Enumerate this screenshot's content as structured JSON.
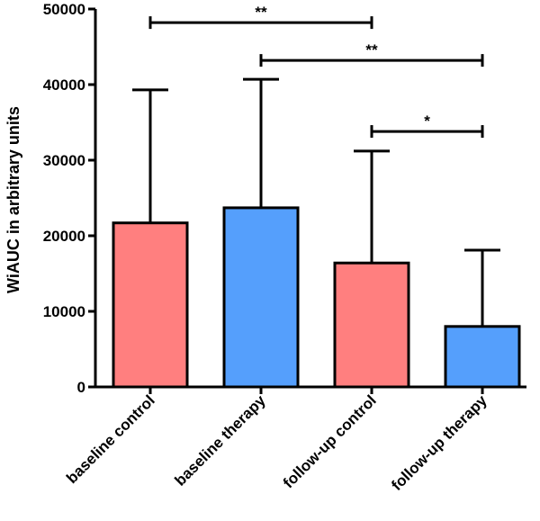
{
  "chart_data": {
    "type": "bar",
    "title": "",
    "xlabel": "",
    "ylabel": "WiAUC in arbitrary units",
    "ylim": [
      0,
      50000
    ],
    "yticks": [
      0,
      10000,
      20000,
      30000,
      40000,
      50000
    ],
    "ytick_labels": [
      "0",
      "10000",
      "20000",
      "30000",
      "40000",
      "50000"
    ],
    "categories": [
      "baseline control",
      "baseline therapy",
      "follow-up control",
      "follow-up therapy"
    ],
    "values": [
      21700,
      23700,
      16400,
      8000
    ],
    "error_upper": [
      39300,
      40700,
      31200,
      18100
    ],
    "colors": [
      "#ff7f7f",
      "#559ffc",
      "#ff7f7f",
      "#559ffc"
    ],
    "edge_color": "#000000",
    "significance": [
      {
        "from": 0,
        "to": 2,
        "y": 48200,
        "label": "**"
      },
      {
        "from": 1,
        "to": 3,
        "y": 43200,
        "label": "**"
      },
      {
        "from": 2,
        "to": 3,
        "y": 33800,
        "label": "*"
      }
    ]
  }
}
